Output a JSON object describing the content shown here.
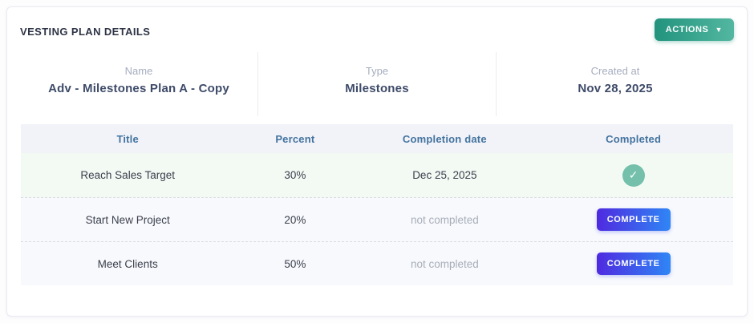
{
  "page": {
    "title": "VESTING PLAN DETAILS"
  },
  "actions_button": {
    "label": "ACTIONS",
    "caret_icon": "▼"
  },
  "info": {
    "fields": [
      {
        "label": "Name",
        "value": "Adv - Milestones Plan A - Copy"
      },
      {
        "label": "Type",
        "value": "Milestones"
      },
      {
        "label": "Created at",
        "value": "Nov 28, 2025"
      }
    ]
  },
  "table": {
    "headers": [
      "Title",
      "Percent",
      "Completion date",
      "Completed"
    ],
    "rows": [
      {
        "title": "Reach Sales Target",
        "percent": "30%",
        "completion_date": "Dec 25, 2025",
        "completed": true,
        "check_icon": "✓"
      },
      {
        "title": "Start New Project",
        "percent": "20%",
        "completion_date": "not completed",
        "completed": false,
        "button_label": "COMPLETE"
      },
      {
        "title": "Meet Clients",
        "percent": "50%",
        "completion_date": "not completed",
        "completed": false,
        "button_label": "COMPLETE"
      }
    ]
  },
  "colors": {
    "actions_gradient_start": "#22937e",
    "actions_gradient_end": "#53b7a0",
    "complete_gradient_start": "#4f2ae0",
    "complete_gradient_end": "#2f86f5",
    "check_badge": "#74c0ab",
    "table_header_bg": "#f1f3f9",
    "table_header_text": "#44739e",
    "row_bg": "#f8f9fd",
    "completed_row_bg": "#f3faf4",
    "title_text": "#2e3446",
    "value_text": "#3d4a68",
    "label_text": "#a6adbf",
    "muted_text": "#a8aeb9"
  }
}
